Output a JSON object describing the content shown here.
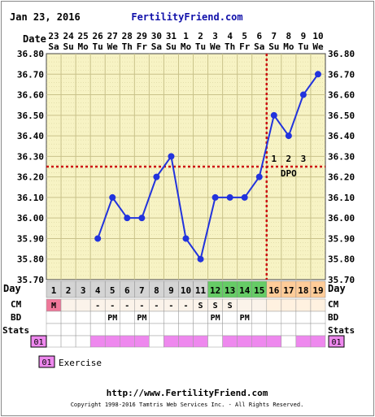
{
  "header": {
    "date": "Jan 23, 2016",
    "site": "FertilityFriend.com"
  },
  "footer": {
    "url": "http://www.FertilityFriend.com",
    "copyright": "Copyright 1998-2016 Tamtris Web Services Inc. - All Rights Reserved."
  },
  "labels": {
    "date": "Date",
    "day": "Day",
    "cm": "CM",
    "bd": "BD",
    "stats": "Stats",
    "dpo": "DPO",
    "legend_code": "01",
    "legend_text": "Exercise"
  },
  "colors": {
    "plot_bg": "#f7f3c4",
    "grid": "#c9c28a",
    "line": "#2233dd",
    "coverline": "#cc1111",
    "day_default": "#d4d4d4",
    "day_green": "#66cc66",
    "day_orange": "#ffcc99",
    "cm_m": "#ee7799",
    "exercise": "#ee88ee",
    "site_title": "#1111aa"
  },
  "chart_data": {
    "type": "line",
    "ylim": [
      35.7,
      36.8
    ],
    "yticks": [
      "36.80",
      "36.70",
      "36.60",
      "36.50",
      "36.40",
      "36.30",
      "36.20",
      "36.10",
      "36.00",
      "35.90",
      "35.80",
      "35.70"
    ],
    "dates": [
      {
        "d": "23",
        "w": "Sa"
      },
      {
        "d": "24",
        "w": "Su"
      },
      {
        "d": "25",
        "w": "Mo"
      },
      {
        "d": "26",
        "w": "Tu"
      },
      {
        "d": "27",
        "w": "We"
      },
      {
        "d": "28",
        "w": "Th"
      },
      {
        "d": "29",
        "w": "Fr"
      },
      {
        "d": "30",
        "w": "Sa"
      },
      {
        "d": "31",
        "w": "Su"
      },
      {
        "d": "1",
        "w": "Mo"
      },
      {
        "d": "2",
        "w": "Tu"
      },
      {
        "d": "3",
        "w": "We"
      },
      {
        "d": "4",
        "w": "Th"
      },
      {
        "d": "5",
        "w": "Fr"
      },
      {
        "d": "6",
        "w": "Sa"
      },
      {
        "d": "7",
        "w": "Su"
      },
      {
        "d": "8",
        "w": "Mo"
      },
      {
        "d": "9",
        "w": "Tu"
      },
      {
        "d": "10",
        "w": "We"
      }
    ],
    "cycle_days": [
      "1",
      "2",
      "3",
      "4",
      "5",
      "6",
      "7",
      "8",
      "9",
      "10",
      "11",
      "12",
      "13",
      "14",
      "15",
      "16",
      "17",
      "18",
      "19"
    ],
    "temps": [
      null,
      null,
      null,
      35.9,
      36.1,
      36.0,
      36.0,
      36.2,
      36.3,
      35.9,
      35.8,
      36.1,
      36.1,
      36.1,
      36.2,
      36.5,
      36.4,
      36.6,
      36.7
    ],
    "coverline": 36.25,
    "ovulation_day": "15",
    "dpo": [
      "1",
      "2",
      "3"
    ],
    "day_colors": [
      "default",
      "default",
      "default",
      "default",
      "default",
      "default",
      "default",
      "default",
      "default",
      "default",
      "default",
      "green",
      "green",
      "green",
      "green",
      "orange",
      "orange",
      "orange",
      "orange"
    ],
    "cm": [
      "M",
      "",
      "",
      "-",
      "-",
      "-",
      "-",
      "-",
      "-",
      "-",
      "S",
      "S",
      "S",
      "",
      "",
      "",
      "",
      "",
      ""
    ],
    "bd": [
      "",
      "",
      "",
      "",
      "PM",
      "",
      "PM",
      "",
      "",
      "",
      "",
      "PM",
      "",
      "PM",
      "",
      "",
      "",
      "",
      ""
    ],
    "exercise": [
      false,
      false,
      false,
      true,
      true,
      true,
      true,
      false,
      true,
      true,
      true,
      false,
      true,
      true,
      true,
      true,
      false,
      true,
      true
    ]
  }
}
